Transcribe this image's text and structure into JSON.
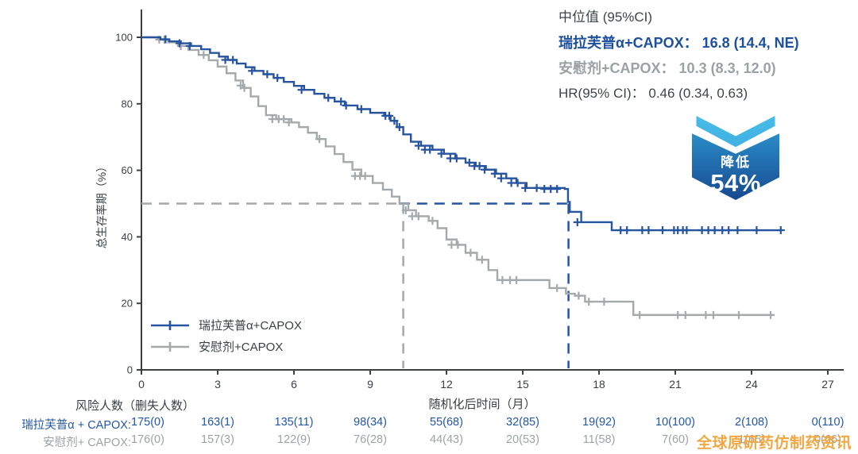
{
  "stats": {
    "title": "中位值 (95%CI)",
    "arm1_label": "瑞拉芙普α+CAPOX：",
    "arm1_value": "16.8 (14.4, NE)",
    "arm2_label": "安慰剂+CAPOX：",
    "arm2_value": "10.3 (8.3, 12.0)",
    "hr_label": "HR(95% CI)：",
    "hr_value": "0.46 (0.34, 0.63)"
  },
  "badge": {
    "line1": "降低",
    "line2": "54%"
  },
  "watermark": "全球原研药仿制药资讯",
  "risk_table": {
    "header": "风险人数（删失人数）",
    "rows": [
      {
        "label": "瑞拉芙普α + CAPOX:",
        "color": "#2457a3",
        "values": [
          "175(0)",
          "163(1)",
          "135(11)",
          "98(34)",
          "55(68)",
          "32(85)",
          "19(92)",
          "10(100)",
          "2(108)",
          "0(110)"
        ]
      },
      {
        "label": "安慰剂+ CAPOX:",
        "color": "#9ea3a8",
        "values": [
          "176(0)",
          "157(3)",
          "122(9)",
          "76(28)",
          "44(43)",
          "20(53)",
          "11(58)",
          "7(60)",
          "1(65)",
          "0(66)"
        ]
      }
    ]
  },
  "chart_data": {
    "type": "line",
    "subtype": "kaplan-meier-step",
    "xlabel": "随机化后时间（月）",
    "ylabel": "总生存率期（%）",
    "xlim": [
      0,
      27
    ],
    "ylim": [
      0,
      100
    ],
    "xticks": [
      0,
      3,
      6,
      9,
      12,
      15,
      18,
      21,
      24,
      27
    ],
    "yticks": [
      0,
      20,
      40,
      60,
      80,
      100
    ],
    "grid": false,
    "legend_position": "lower-left-inside",
    "axis_color": "#3c4043",
    "reference": {
      "y_percent": 50,
      "gray_median_month": 10.3,
      "blue_median_month": 16.8,
      "crossover_month": 10.15
    },
    "series": [
      {
        "name": "瑞拉芙普α+CAPOX",
        "color": "#27549f",
        "median": "16.8 (14.4, NE)",
        "steps": [
          [
            0,
            100
          ],
          [
            0.75,
            99.4
          ],
          [
            1.1,
            98.8
          ],
          [
            1.55,
            98.2
          ],
          [
            1.95,
            97.4
          ],
          [
            2.35,
            96.4
          ],
          [
            2.7,
            95.3
          ],
          [
            3.05,
            94.2
          ],
          [
            3.4,
            93.2
          ],
          [
            3.75,
            92.1
          ],
          [
            4.1,
            91.0
          ],
          [
            4.45,
            89.9
          ],
          [
            4.8,
            88.9
          ],
          [
            5.2,
            87.8
          ],
          [
            5.6,
            86.6
          ],
          [
            6.0,
            85.4
          ],
          [
            6.4,
            84.2
          ],
          [
            6.8,
            83.0
          ],
          [
            7.2,
            81.8
          ],
          [
            7.6,
            80.7
          ],
          [
            8.0,
            79.5
          ],
          [
            8.5,
            78.4
          ],
          [
            9.0,
            77.3
          ],
          [
            9.55,
            76.4
          ],
          [
            9.8,
            74.9
          ],
          [
            10.05,
            73.0
          ],
          [
            10.3,
            70.8
          ],
          [
            10.6,
            68.6
          ],
          [
            11.0,
            67.4
          ],
          [
            11.45,
            66.2
          ],
          [
            11.9,
            65.0
          ],
          [
            12.35,
            63.6
          ],
          [
            12.75,
            62.3
          ],
          [
            13.15,
            61.3
          ],
          [
            13.55,
            60.2
          ],
          [
            13.95,
            59.0
          ],
          [
            14.35,
            57.6
          ],
          [
            14.75,
            56.2
          ],
          [
            15.15,
            54.7
          ],
          [
            16.65,
            54.4
          ],
          [
            16.78,
            50.5
          ],
          [
            16.85,
            47.5
          ],
          [
            17.3,
            44.4
          ],
          [
            18.5,
            42.0
          ],
          [
            25.2,
            42.0
          ]
        ],
        "censors": [
          [
            0.95,
            99.4
          ],
          [
            1.5,
            98.2
          ],
          [
            1.9,
            97.4
          ],
          [
            3.3,
            93.2
          ],
          [
            3.6,
            93.2
          ],
          [
            4.35,
            89.9
          ],
          [
            4.95,
            88.9
          ],
          [
            5.35,
            87.8
          ],
          [
            6.3,
            84.2
          ],
          [
            7.35,
            81.8
          ],
          [
            7.85,
            80.7
          ],
          [
            8.05,
            79.5
          ],
          [
            8.65,
            78.4
          ],
          [
            9.6,
            76.4
          ],
          [
            9.75,
            76.4
          ],
          [
            9.95,
            74.9
          ],
          [
            10.15,
            73.0
          ],
          [
            10.9,
            67.4
          ],
          [
            11.15,
            66.2
          ],
          [
            11.35,
            66.2
          ],
          [
            11.8,
            65.0
          ],
          [
            12.15,
            63.6
          ],
          [
            12.4,
            63.6
          ],
          [
            12.9,
            62.3
          ],
          [
            13.1,
            61.3
          ],
          [
            13.3,
            61.3
          ],
          [
            13.5,
            60.2
          ],
          [
            13.9,
            59.0
          ],
          [
            14.15,
            57.6
          ],
          [
            14.55,
            56.2
          ],
          [
            14.8,
            56.2
          ],
          [
            15.1,
            54.7
          ],
          [
            15.55,
            54.7
          ],
          [
            15.85,
            54.4
          ],
          [
            16.1,
            54.4
          ],
          [
            16.35,
            54.4
          ],
          [
            17.15,
            44.4
          ],
          [
            18.85,
            42
          ],
          [
            19.1,
            42
          ],
          [
            19.7,
            42
          ],
          [
            19.95,
            42
          ],
          [
            20.5,
            42
          ],
          [
            20.95,
            42
          ],
          [
            21.1,
            42
          ],
          [
            21.3,
            42
          ],
          [
            21.45,
            42
          ],
          [
            22.05,
            42
          ],
          [
            22.3,
            42
          ],
          [
            22.55,
            42
          ],
          [
            22.85,
            42
          ],
          [
            23.1,
            42
          ],
          [
            23.45,
            42
          ],
          [
            24.2,
            42
          ],
          [
            25.15,
            42
          ]
        ]
      },
      {
        "name": "安慰剂+CAPOX",
        "color": "#a5a9ac",
        "median": "10.3 (8.3, 12.0)",
        "steps": [
          [
            0,
            100
          ],
          [
            0.65,
            99.3
          ],
          [
            1.05,
            98.5
          ],
          [
            1.45,
            97.4
          ],
          [
            1.85,
            96.2
          ],
          [
            2.25,
            94.7
          ],
          [
            2.65,
            93.1
          ],
          [
            3.0,
            91.2
          ],
          [
            3.35,
            89.2
          ],
          [
            3.7,
            87.0
          ],
          [
            4.0,
            84.8
          ],
          [
            4.3,
            82.2
          ],
          [
            4.6,
            79.3
          ],
          [
            4.9,
            76.6
          ],
          [
            5.3,
            75.4
          ],
          [
            5.9,
            74.4
          ],
          [
            6.2,
            73.0
          ],
          [
            6.55,
            71.3
          ],
          [
            6.9,
            69.4
          ],
          [
            7.25,
            67.2
          ],
          [
            7.6,
            64.9
          ],
          [
            7.95,
            62.5
          ],
          [
            8.3,
            60.2
          ],
          [
            8.65,
            58.3
          ],
          [
            9.1,
            56.2
          ],
          [
            9.5,
            54.2
          ],
          [
            9.85,
            52.1
          ],
          [
            10.15,
            49.9
          ],
          [
            10.5,
            48.0
          ],
          [
            10.8,
            46.2
          ],
          [
            11.3,
            44.8
          ],
          [
            11.65,
            42.6
          ],
          [
            12.0,
            39.2
          ],
          [
            12.4,
            37.6
          ],
          [
            12.75,
            35.2
          ],
          [
            13.2,
            33.1
          ],
          [
            13.65,
            30.0
          ],
          [
            14.0,
            27.0
          ],
          [
            16.05,
            24.6
          ],
          [
            16.7,
            22.9
          ],
          [
            17.05,
            22.3
          ],
          [
            17.45,
            20.5
          ],
          [
            19.35,
            16.5
          ],
          [
            24.9,
            16.5
          ]
        ],
        "censors": [
          [
            0.7,
            99.3
          ],
          [
            0.9,
            99.3
          ],
          [
            1.55,
            97.4
          ],
          [
            2.45,
            94.7
          ],
          [
            3.9,
            85.5
          ],
          [
            4.05,
            84.8
          ],
          [
            5.15,
            75.4
          ],
          [
            5.4,
            75.4
          ],
          [
            5.6,
            75.4
          ],
          [
            5.8,
            74.4
          ],
          [
            7.0,
            69.4
          ],
          [
            8.4,
            58.3
          ],
          [
            8.6,
            58.3
          ],
          [
            8.8,
            58.3
          ],
          [
            10.4,
            48.0
          ],
          [
            10.65,
            46.2
          ],
          [
            10.9,
            46.2
          ],
          [
            11.45,
            44.8
          ],
          [
            12.2,
            37.6
          ],
          [
            12.45,
            37.6
          ],
          [
            12.95,
            35.2
          ],
          [
            13.4,
            33.1
          ],
          [
            14.2,
            27
          ],
          [
            14.5,
            27
          ],
          [
            14.75,
            27
          ],
          [
            16.35,
            24.6
          ],
          [
            17.2,
            22.3
          ],
          [
            17.6,
            20.5
          ],
          [
            18.2,
            20.5
          ],
          [
            19.6,
            16.5
          ],
          [
            21.1,
            16.5
          ],
          [
            21.4,
            16.5
          ],
          [
            22.2,
            16.5
          ],
          [
            22.5,
            16.5
          ],
          [
            23.5,
            16.5
          ],
          [
            24.75,
            16.5
          ]
        ]
      }
    ]
  }
}
